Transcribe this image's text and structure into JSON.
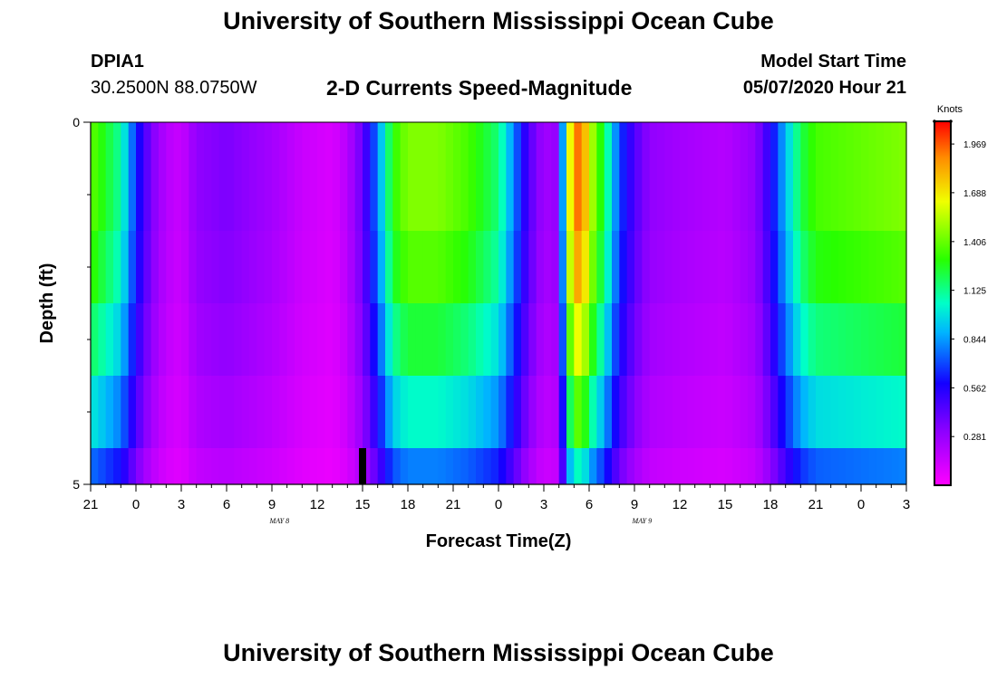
{
  "header": {
    "title": "University of Southern Mississippi Ocean Cube",
    "station_id": "DPIA1",
    "station_coords": "30.2500N 88.0750W",
    "plot_title": "2-D Currents Speed-Magnitude",
    "model_start_label": "Model Start Time",
    "model_start_value": "05/07/2020 Hour 21"
  },
  "footer": {
    "title": "University of Southern Mississippi Ocean Cube"
  },
  "chart_data": {
    "type": "heatmap",
    "title": "2-D Currents Speed-Magnitude",
    "xlabel": "Forecast Time(Z)",
    "ylabel": "Depth (ft)",
    "x_tick_labels": [
      "21",
      "0",
      "3",
      "6",
      "9",
      "12",
      "15",
      "18",
      "21",
      "0",
      "3",
      "6",
      "9",
      "12",
      "15",
      "18",
      "21",
      "0",
      "3"
    ],
    "x_hours_range": [
      0,
      54
    ],
    "date_labels": [
      {
        "text": "MAY 8",
        "hour": 15
      },
      {
        "text": "MAY 9",
        "hour": 39
      }
    ],
    "y_tick_labels": [
      "0",
      "5"
    ],
    "ylim": [
      0,
      5
    ],
    "depth_rows": 5,
    "colorbar": {
      "unit": "Knots",
      "min": 0.0,
      "max": 2.1,
      "tick_labels": [
        "1.969",
        "1.688",
        "1.406",
        "1.125",
        "0.844",
        "0.562",
        "0.281"
      ],
      "tick_values": [
        1.969,
        1.688,
        1.406,
        1.125,
        0.844,
        0.562,
        0.281
      ]
    },
    "current_time_marker_hour": 18,
    "speed_profile_knots": [
      [
        0,
        1.4
      ],
      [
        2,
        1.1
      ],
      [
        3,
        0.65
      ],
      [
        4,
        0.35
      ],
      [
        5,
        0.2
      ],
      [
        6,
        0.15
      ],
      [
        7,
        0.3
      ],
      [
        9,
        0.35
      ],
      [
        12,
        0.25
      ],
      [
        14,
        0.15
      ],
      [
        16,
        0.1
      ],
      [
        17,
        0.2
      ],
      [
        18,
        0.4
      ],
      [
        19,
        0.8
      ],
      [
        20,
        1.3
      ],
      [
        21,
        1.45
      ],
      [
        23,
        1.45
      ],
      [
        25,
        1.35
      ],
      [
        27,
        1.15
      ],
      [
        28,
        0.8
      ],
      [
        29,
        0.45
      ],
      [
        30,
        0.25
      ],
      [
        31,
        0.3
      ],
      [
        31.5,
        1.4
      ],
      [
        32,
        1.9
      ],
      [
        32.5,
        1.95
      ],
      [
        33,
        1.6
      ],
      [
        34,
        1.2
      ],
      [
        35,
        0.7
      ],
      [
        36,
        0.45
      ],
      [
        37,
        0.3
      ],
      [
        39,
        0.25
      ],
      [
        42,
        0.2
      ],
      [
        44,
        0.3
      ],
      [
        45,
        0.55
      ],
      [
        46,
        0.9
      ],
      [
        47,
        1.2
      ],
      [
        48,
        1.35
      ],
      [
        51,
        1.4
      ],
      [
        54,
        1.45
      ]
    ],
    "depth_factors": [
      1.0,
      1.0,
      0.95,
      0.85,
      0.72,
      0.55
    ]
  }
}
